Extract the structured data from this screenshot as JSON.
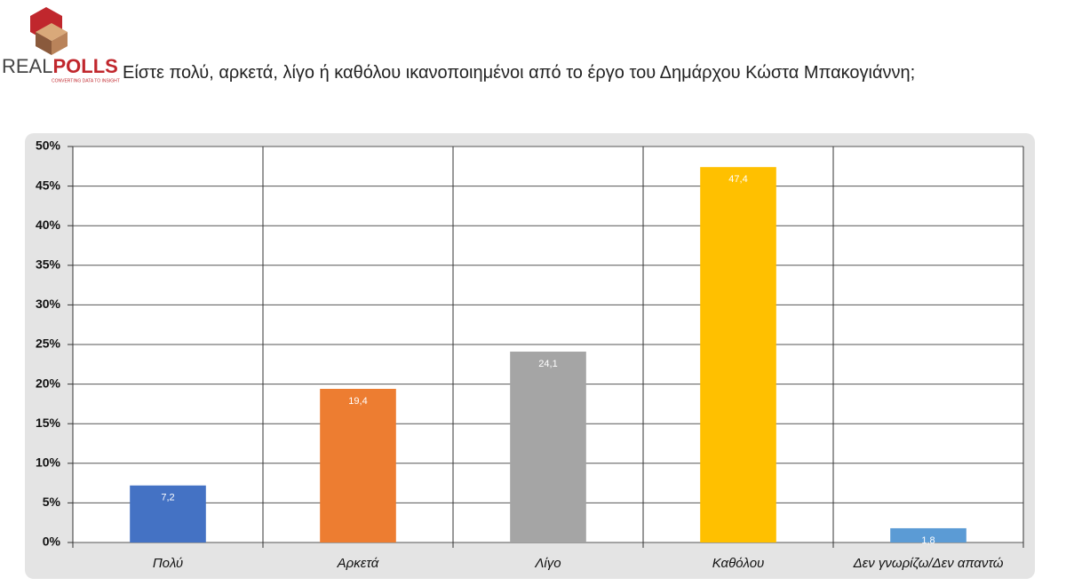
{
  "logo": {
    "name_left": "REAL",
    "name_right": "POLLS",
    "tagline": "CONVERTING DATA TO INSIGHT"
  },
  "chart_data": {
    "type": "bar",
    "title": "Είστε πολύ, αρκετά, λίγο ή καθόλου ικανοποιημένοι από το έργο του Δημάρχου Κώστα Μπακογιάννη;",
    "categories": [
      "Πολύ",
      "Αρκετά",
      "Λίγο",
      "Καθόλου",
      "Δεν γνωρίζω/Δεν απαντώ"
    ],
    "values": [
      7.2,
      19.4,
      24.1,
      47.4,
      1.8
    ],
    "value_labels": [
      "7,2",
      "19,4",
      "24,1",
      "47,4",
      "1,8"
    ],
    "colors": [
      "#4472c4",
      "#ed7d31",
      "#a5a5a5",
      "#ffc000",
      "#5b9bd5"
    ],
    "ylim": [
      0,
      50
    ],
    "yticks": [
      {
        "value": 0,
        "label": "0%"
      },
      {
        "value": 5,
        "label": "5%"
      },
      {
        "value": 10,
        "label": "10%"
      },
      {
        "value": 15,
        "label": "15%"
      },
      {
        "value": 20,
        "label": "20%"
      },
      {
        "value": 25,
        "label": "25%"
      },
      {
        "value": 30,
        "label": "30%"
      },
      {
        "value": 35,
        "label": "35%"
      },
      {
        "value": 40,
        "label": "40%"
      },
      {
        "value": 45,
        "label": "45%"
      },
      {
        "value": 50,
        "label": "50%"
      }
    ],
    "grid": true
  }
}
